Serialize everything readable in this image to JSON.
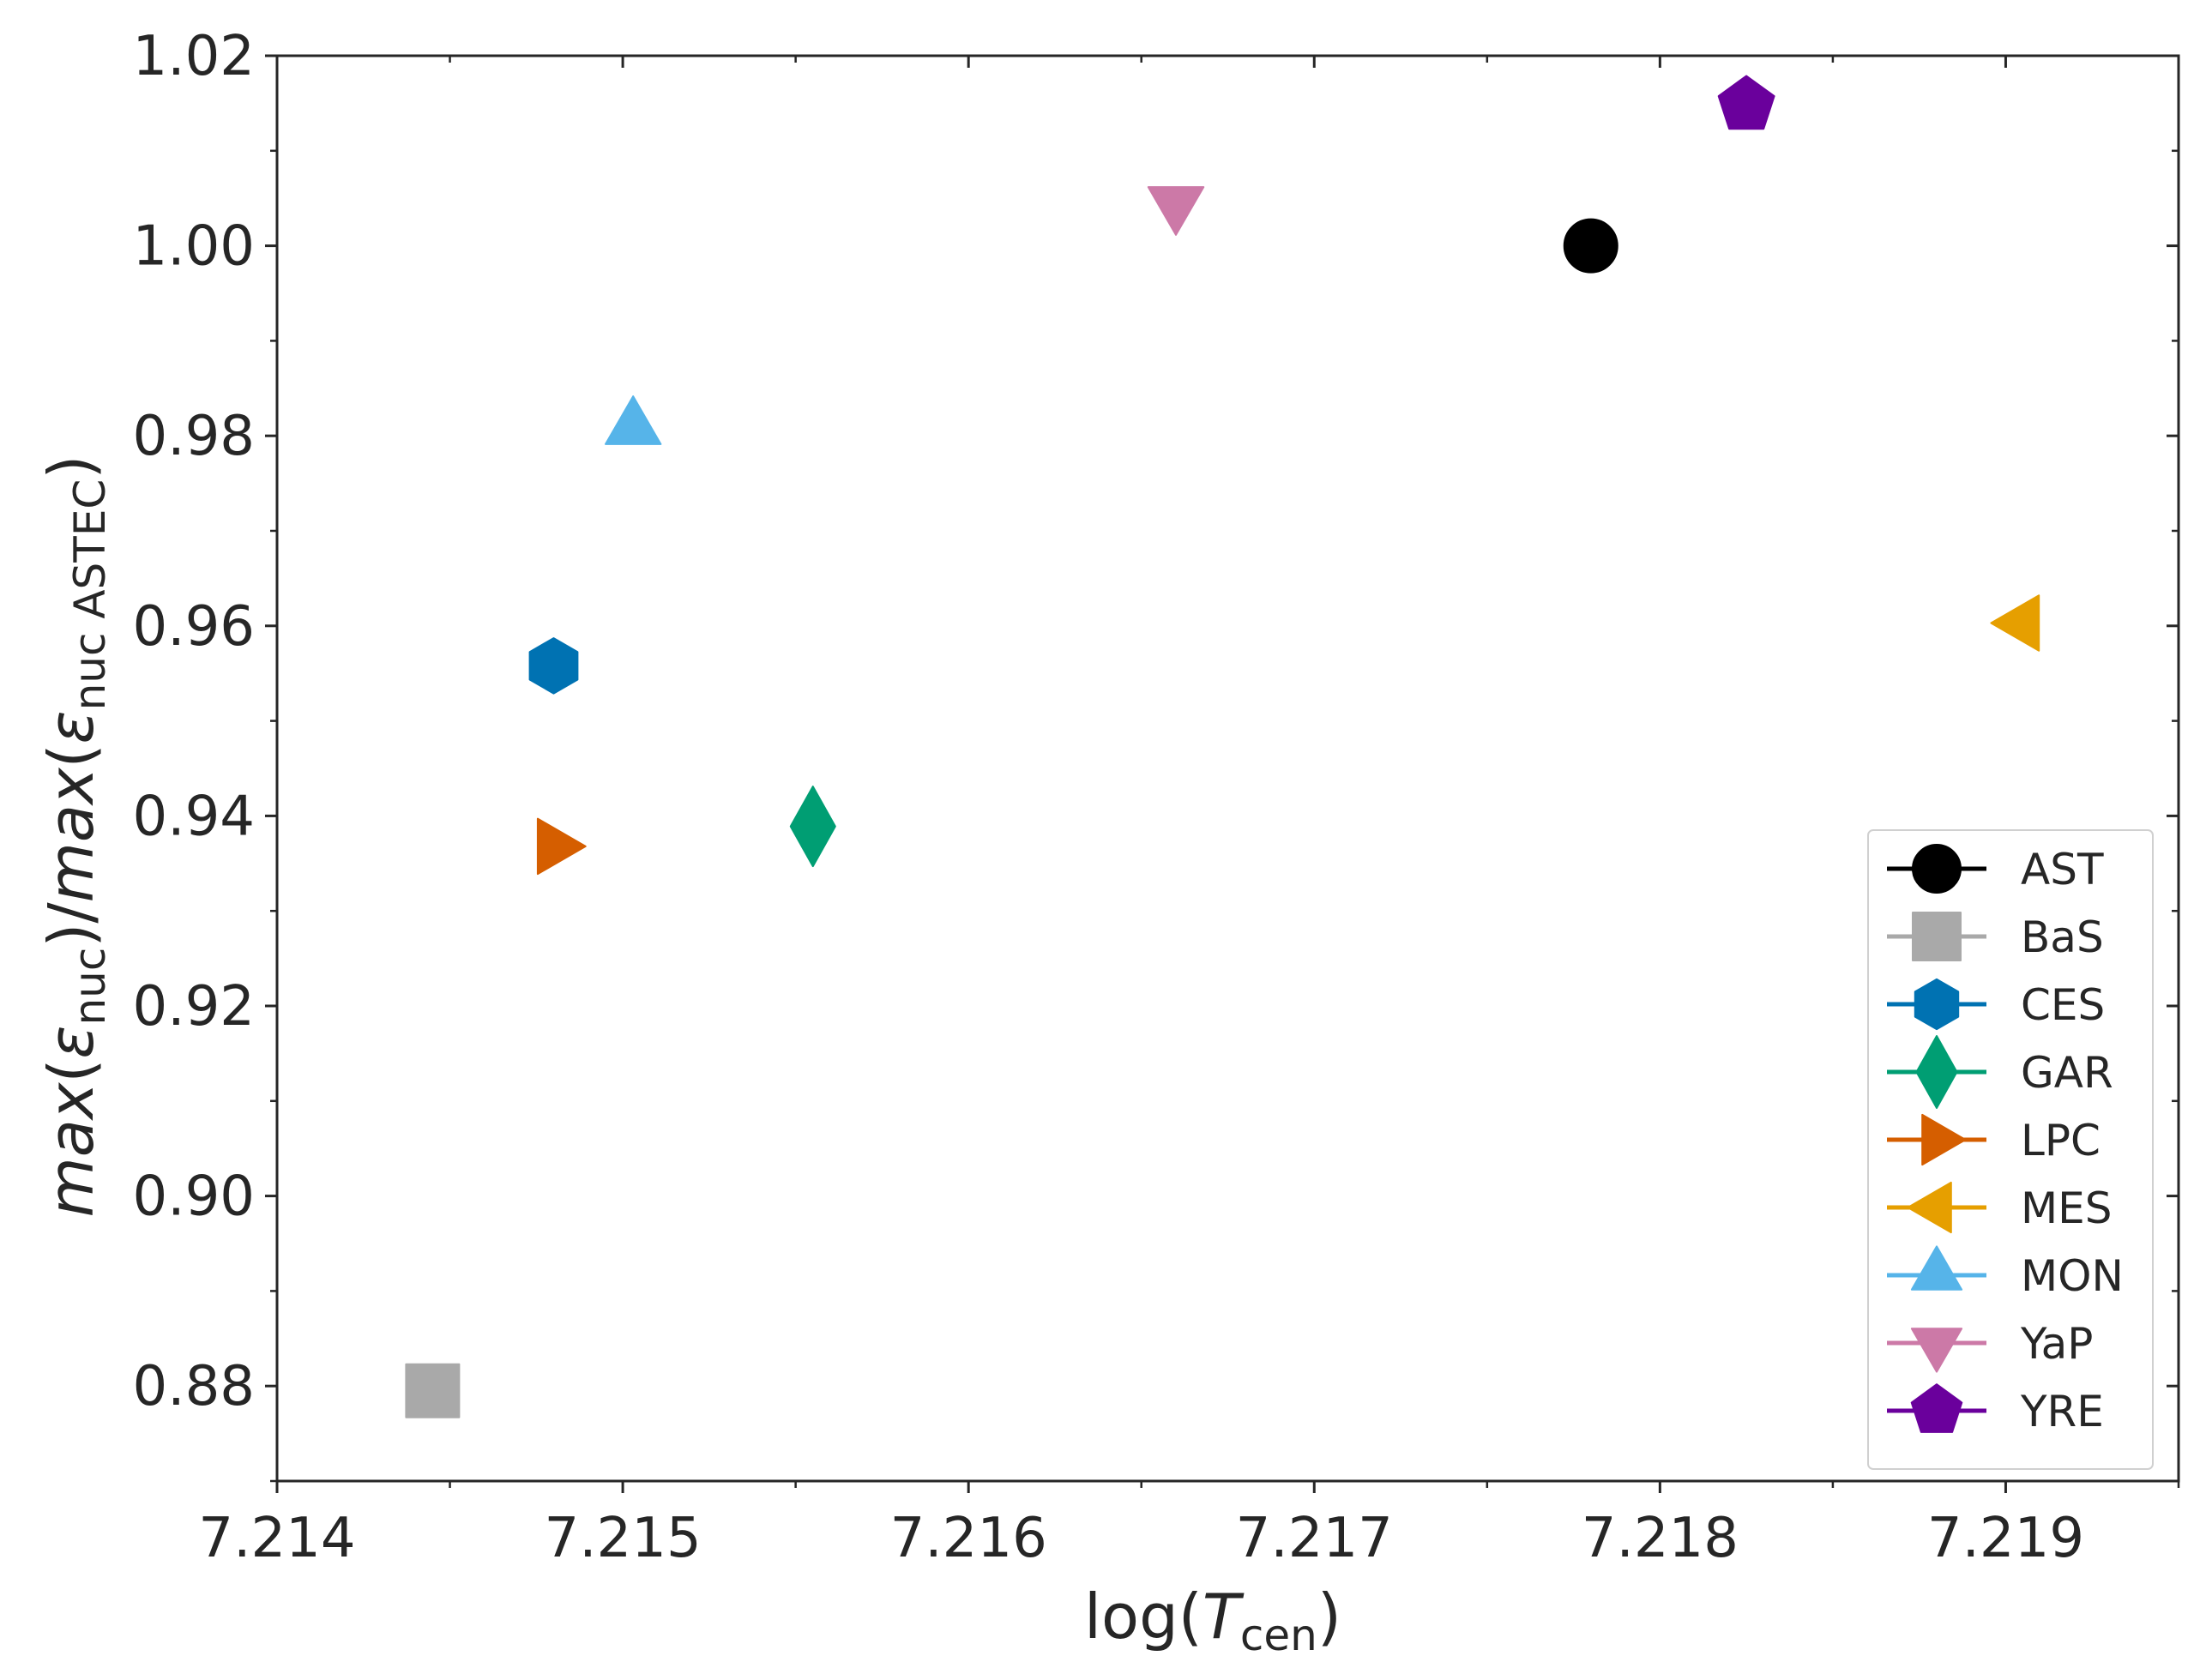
{
  "chart_data": {
    "type": "scatter",
    "xlabel": "log(T_cen)",
    "ylabel": "max(ε_nuc)/max(ε_nuc ASTEC)",
    "xlim": [
      7.214,
      7.2195
    ],
    "ylim": [
      0.87,
      1.02
    ],
    "x_ticks": [
      "7.214",
      "7.215",
      "7.216",
      "7.217",
      "7.218",
      "7.219"
    ],
    "y_ticks": [
      "0.88",
      "0.90",
      "0.92",
      "0.94",
      "0.96",
      "0.98",
      "1.00",
      "1.02"
    ],
    "grid": false,
    "legend_position": "lower right",
    "series": [
      {
        "name": "AST",
        "x": 7.2178,
        "y": 1.0,
        "marker": "circle",
        "color": "#000000"
      },
      {
        "name": "BaS",
        "x": 7.21445,
        "y": 0.8795,
        "marker": "square",
        "color": "#a9a9a9"
      },
      {
        "name": "CES",
        "x": 7.2148,
        "y": 0.9558,
        "marker": "hexagon",
        "color": "#0072b2"
      },
      {
        "name": "GAR",
        "x": 7.21555,
        "y": 0.9389,
        "marker": "diamond",
        "color": "#009e73"
      },
      {
        "name": "LPC",
        "x": 7.2148,
        "y": 0.9368,
        "marker": "triangle-right",
        "color": "#d55e00"
      },
      {
        "name": "MES",
        "x": 7.21905,
        "y": 0.9603,
        "marker": "triangle-left",
        "color": "#e69f00"
      },
      {
        "name": "MON",
        "x": 7.21503,
        "y": 0.9808,
        "marker": "triangle-up",
        "color": "#56b4e9"
      },
      {
        "name": "YaP",
        "x": 7.2166,
        "y": 1.0045,
        "marker": "triangle-down",
        "color": "#cc79a7"
      },
      {
        "name": "YRE",
        "x": 7.21825,
        "y": 1.0148,
        "marker": "pentagon",
        "color": "#6a009c"
      }
    ]
  }
}
